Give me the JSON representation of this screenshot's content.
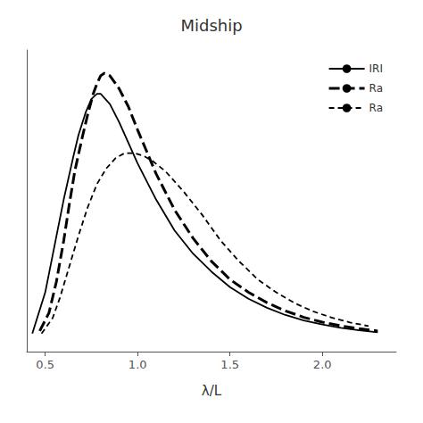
{
  "chart_data": {
    "type": "line",
    "title": "Midship",
    "xlabel": "λ/L",
    "xlim": [
      0.4,
      2.4
    ],
    "xticks": [
      0.5,
      {
        "value": 1.0,
        "label": "1.0"
      },
      1.5,
      {
        "value": 2.0,
        "label": "2.0"
      }
    ],
    "ylim": [
      -0.05,
      1.12
    ],
    "yticks": [],
    "tick_labels": "x",
    "grid": false,
    "legend": "upper right",
    "series": [
      {
        "name": "IRI",
        "color": "#000000",
        "line_style": "solid",
        "x": [
          0.43,
          0.5,
          0.55,
          0.6,
          0.65,
          0.68,
          0.72,
          0.75,
          0.78,
          0.8,
          0.85,
          0.9,
          1.0,
          1.1,
          1.2,
          1.3,
          1.4,
          1.5,
          1.6,
          1.7,
          1.8,
          1.9,
          2.0,
          2.1,
          2.2,
          2.3
        ],
        "values": [
          0.02,
          0.18,
          0.36,
          0.54,
          0.7,
          0.79,
          0.88,
          0.93,
          0.95,
          0.95,
          0.91,
          0.84,
          0.68,
          0.54,
          0.42,
          0.33,
          0.26,
          0.2,
          0.155,
          0.12,
          0.092,
          0.071,
          0.055,
          0.042,
          0.033,
          0.025
        ]
      },
      {
        "name": "Ra",
        "color": "#000000",
        "line_style": "long_dash",
        "x": [
          0.47,
          0.52,
          0.56,
          0.6,
          0.63,
          0.66,
          0.7,
          0.73,
          0.76,
          0.78,
          0.8,
          0.82,
          0.85,
          0.9,
          0.95,
          1.0,
          1.1,
          1.2,
          1.3,
          1.4,
          1.5,
          1.6,
          1.7,
          1.8,
          1.9,
          2.0,
          2.1,
          2.2,
          2.3
        ],
        "values": [
          0.03,
          0.1,
          0.22,
          0.38,
          0.52,
          0.65,
          0.78,
          0.87,
          0.95,
          0.99,
          1.02,
          1.03,
          1.02,
          0.97,
          0.9,
          0.81,
          0.64,
          0.5,
          0.39,
          0.3,
          0.23,
          0.18,
          0.14,
          0.108,
          0.083,
          0.064,
          0.05,
          0.039,
          0.03
        ]
      },
      {
        "name": "Ra",
        "color": "#000000",
        "line_style": "short_dash",
        "x": [
          0.48,
          0.54,
          0.58,
          0.63,
          0.68,
          0.73,
          0.78,
          0.83,
          0.88,
          0.93,
          0.98,
          1.03,
          1.08,
          1.15,
          1.25,
          1.35,
          1.45,
          1.55,
          1.65,
          1.75,
          1.85,
          1.95,
          2.05,
          2.15,
          2.25
        ],
        "values": [
          0.02,
          0.08,
          0.16,
          0.28,
          0.4,
          0.51,
          0.6,
          0.66,
          0.7,
          0.72,
          0.72,
          0.71,
          0.69,
          0.65,
          0.57,
          0.48,
          0.38,
          0.3,
          0.23,
          0.18,
          0.138,
          0.106,
          0.082,
          0.063,
          0.049
        ]
      }
    ]
  }
}
